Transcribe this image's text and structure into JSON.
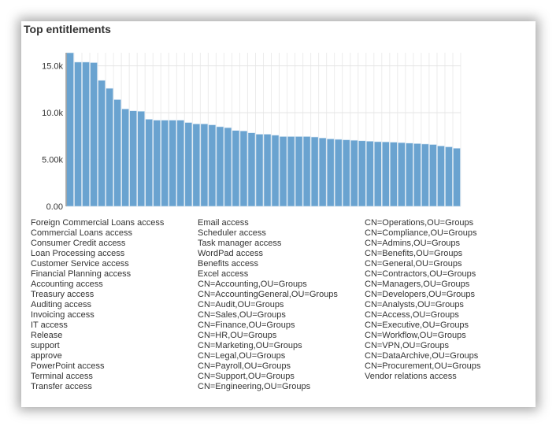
{
  "panel": {
    "title": "Top entitlements"
  },
  "chart_data": {
    "type": "bar",
    "title": "Top entitlements",
    "xlabel": "",
    "ylabel": "",
    "ylim": [
      0,
      16400
    ],
    "yticks": [
      0,
      5000,
      10000,
      15000
    ],
    "ytick_labels": [
      "0.00",
      "5.00k",
      "10.0k",
      "15.0k"
    ],
    "grid": true,
    "bar_color": "#6aa3d0",
    "categories": [
      "Foreign Commercial Loans access",
      "Commercial Loans access",
      "Consumer Credit access",
      "Loan Processing access",
      "Customer Service access",
      "Financial Planning access",
      "Accounting access",
      "Treasury access",
      "Auditing access",
      "Invoicing access",
      "IT access",
      "Release",
      "support",
      "approve",
      "PowerPoint access",
      "Terminal access",
      "Transfer access",
      "Email access",
      "Scheduler access",
      "Task manager access",
      "WordPad access",
      "Benefits access",
      "Excel access",
      "CN=Accounting,OU=Groups",
      "CN=AccountingGeneral,OU=Groups",
      "CN=Audit,OU=Groups",
      "CN=Sales,OU=Groups",
      "CN=Finance,OU=Groups",
      "CN=HR,OU=Groups",
      "CN=Marketing,OU=Groups",
      "CN=Legal,OU=Groups",
      "CN=Payroll,OU=Groups",
      "CN=Support,OU=Groups",
      "CN=Engineering,OU=Groups",
      "CN=Operations,OU=Groups",
      "CN=Compliance,OU=Groups",
      "CN=Admins,OU=Groups",
      "CN=Benefits,OU=Groups",
      "CN=General,OU=Groups",
      "CN=Contractors,OU=Groups",
      "CN=Managers,OU=Groups",
      "CN=Developers,OU=Groups",
      "CN=Analysts,OU=Groups",
      "CN=Access,OU=Groups",
      "CN=Executive,OU=Groups",
      "CN=Workflow,OU=Groups",
      "CN=VPN,OU=Groups",
      "CN=DataArchive,OU=Groups",
      "CN=Procurement,OU=Groups",
      "Vendor relations access"
    ],
    "values": [
      16400,
      15400,
      15400,
      15350,
      13450,
      12600,
      11400,
      10400,
      10200,
      10150,
      9300,
      9200,
      9200,
      9200,
      9200,
      8950,
      8800,
      8800,
      8700,
      8500,
      8400,
      8100,
      8050,
      7850,
      7700,
      7700,
      7600,
      7450,
      7450,
      7450,
      7450,
      7400,
      7300,
      7200,
      7150,
      7100,
      7050,
      7000,
      6950,
      6900,
      6880,
      6850,
      6800,
      6750,
      6700,
      6650,
      6600,
      6450,
      6350,
      6200
    ]
  }
}
